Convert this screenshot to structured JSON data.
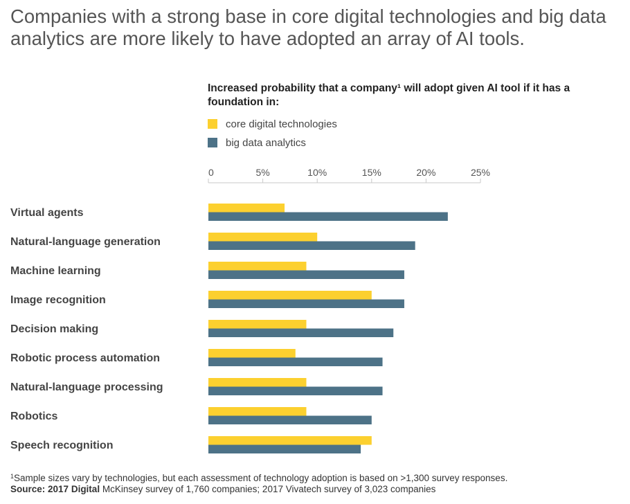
{
  "headline": "Companies with a strong base in core digital technologies and big data analytics are more likely to have adopted an array of AI tools.",
  "colors": {
    "core_digital": "#fcd02f",
    "big_data": "#4d7287",
    "axis": "#c8c8c8",
    "text": "#333333"
  },
  "chart_data": {
    "type": "bar",
    "orientation": "horizontal",
    "title": "Increased probability that a company¹ will adopt given AI tool if it has a foundation in:",
    "categories": [
      "Virtual agents",
      "Natural-language generation",
      "Machine learning",
      "Image recognition",
      "Decision making",
      "Robotic process automation",
      "Natural-language processing",
      "Robotics",
      "Speech recognition"
    ],
    "series": [
      {
        "name": "core digital technologies",
        "values": [
          7,
          10,
          9,
          15,
          9,
          8,
          9,
          9,
          15
        ]
      },
      {
        "name": "big data analytics",
        "values": [
          22,
          19,
          18,
          18,
          17,
          16,
          16,
          15,
          14
        ]
      }
    ],
    "xlim": [
      0,
      25
    ],
    "xticks": [
      0,
      5,
      10,
      15,
      20,
      25
    ],
    "xtick_labels": [
      "0",
      "5%",
      "10%",
      "15%",
      "20%",
      "25%"
    ],
    "axis_position": "top",
    "grid": false,
    "legend_position": "top-left"
  },
  "footnote": {
    "marker": "1",
    "text": "Sample sizes vary by technologies, but each assessment of technology adoption is based on >1,300 survey responses.",
    "source_label": "Source:",
    "source_bold": "2017 Digital",
    "source_rest": " McKinsey survey of 1,760 companies; 2017 Vivatech survey of 3,023 companies"
  }
}
